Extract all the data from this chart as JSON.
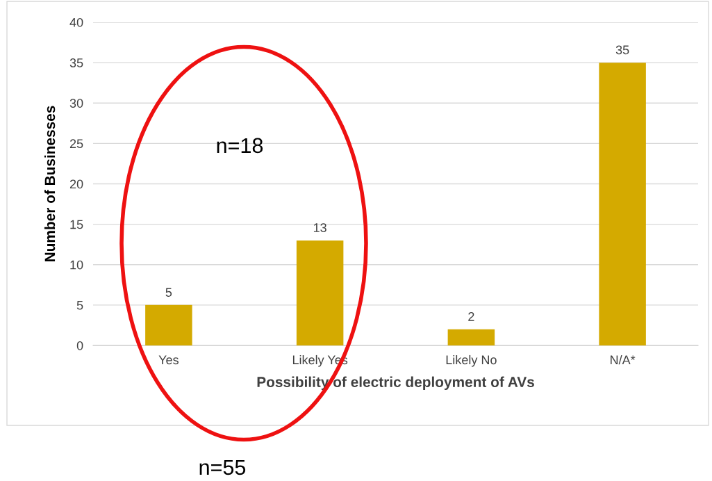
{
  "chart_data": {
    "type": "bar",
    "categories": [
      "Yes",
      "Likely Yes",
      "Likely No",
      "N/A*"
    ],
    "values": [
      5,
      13,
      2,
      35
    ],
    "color": "#d4aa00",
    "xlabel": "Possibility of electric deployment of AVs",
    "ylabel": "Number of Businesses",
    "ylim": [
      0,
      40
    ],
    "yticks": [
      0,
      5,
      10,
      15,
      20,
      25,
      30,
      35,
      40
    ],
    "grid": "y",
    "data_labels": true,
    "annotations": [
      "n=18",
      "n=55"
    ]
  }
}
